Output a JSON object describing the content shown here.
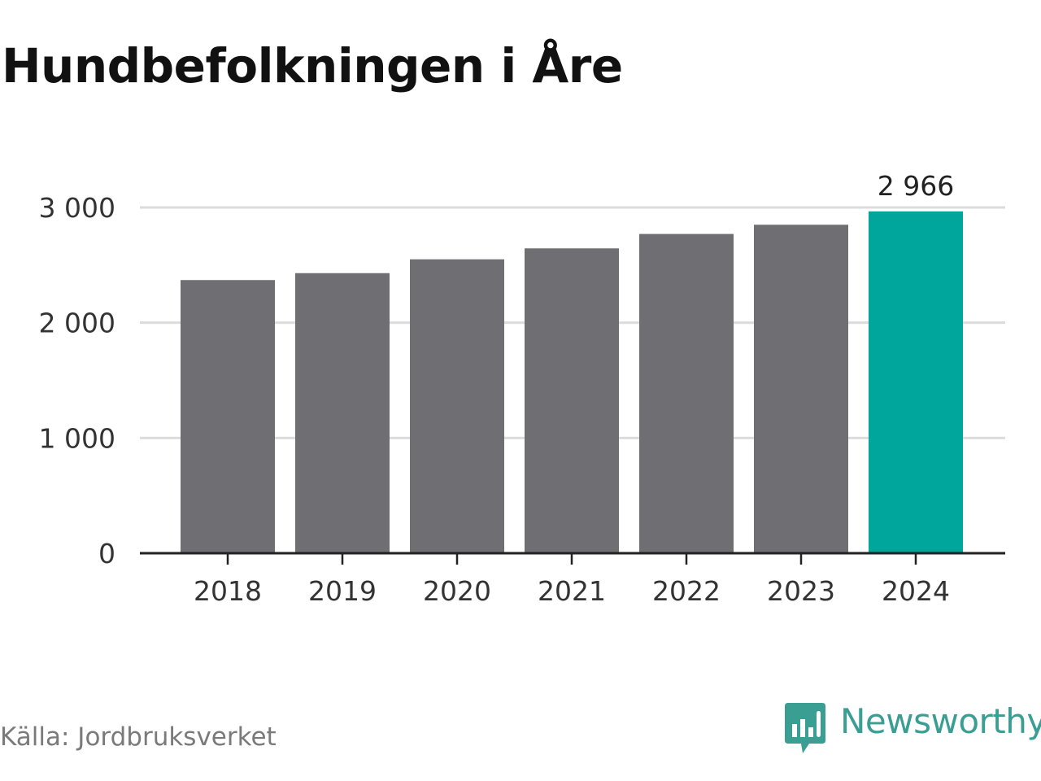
{
  "colors": {
    "bar": "#6f6e73",
    "highlight": "#00a59b",
    "gridline": "#dcdcdc",
    "axis": "#222222",
    "text": "#333333",
    "brand": "#3a9e93"
  },
  "brand": {
    "name": "Newsworthy",
    "icon": "speech-bubble-bar-chart-icon"
  },
  "source": "Källa: Jordbruksverket",
  "chart_data": {
    "type": "bar",
    "title": "Hundbefolkningen i Åre",
    "xlabel": "",
    "ylabel": "",
    "categories": [
      "2018",
      "2019",
      "2020",
      "2021",
      "2022",
      "2023",
      "2024"
    ],
    "values": [
      2370,
      2430,
      2550,
      2645,
      2770,
      2850,
      2966
    ],
    "ylim": [
      0,
      3000
    ],
    "yticks": [
      {
        "value": 0,
        "label": "0"
      },
      {
        "value": 1000,
        "label": "1 000"
      },
      {
        "value": 2000,
        "label": "2 000"
      },
      {
        "value": 3000,
        "label": "3 000"
      }
    ],
    "highlight_index": 6,
    "data_labels": [
      {
        "index": 6,
        "label": "2 966"
      }
    ],
    "grid": true,
    "legend": "none"
  }
}
